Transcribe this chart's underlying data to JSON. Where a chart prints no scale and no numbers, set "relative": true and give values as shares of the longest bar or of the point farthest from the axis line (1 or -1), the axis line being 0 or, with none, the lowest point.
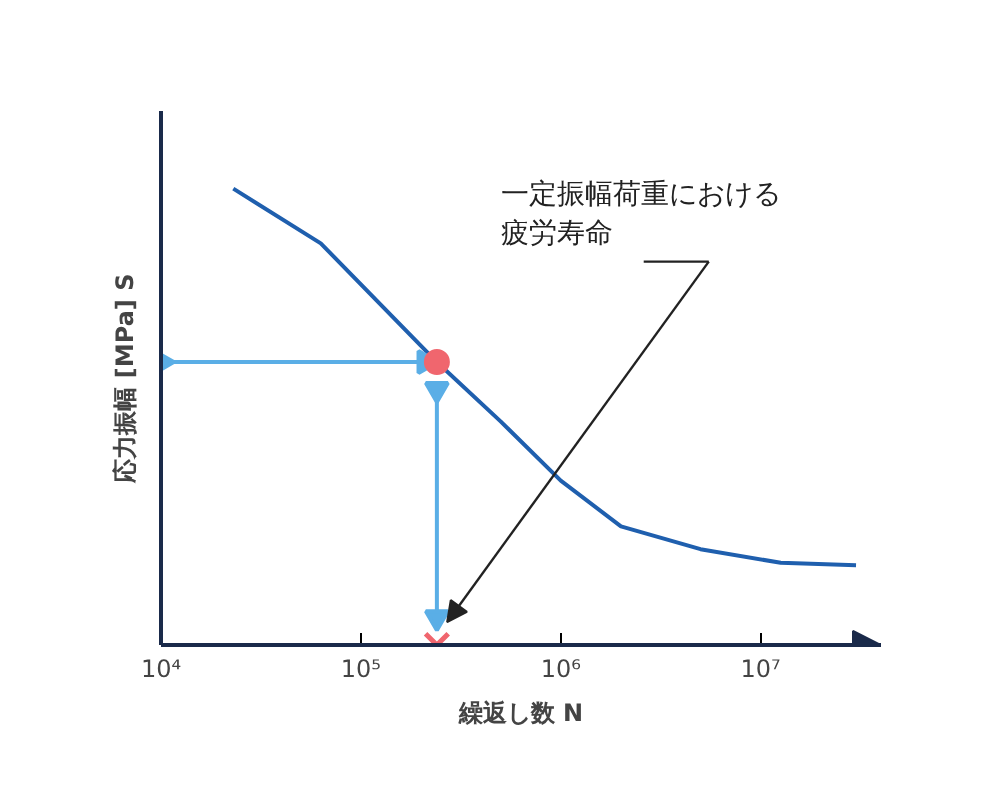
{
  "chart_data": {
    "type": "line",
    "xlabel": "繰返し数 N",
    "ylabel": "応力振幅 [MPa] S",
    "relative": true,
    "log": "x",
    "xlim": [
      10000,
      40000000
    ],
    "xticks": [
      {
        "value": 10000,
        "label": "10⁴"
      },
      {
        "value": 100000,
        "label": "10⁵"
      },
      {
        "value": 1000000,
        "label": "10⁶"
      },
      {
        "value": 10000000,
        "label": "10⁷"
      }
    ],
    "grid": false,
    "annotations": [
      "一定振幅荷重における疲労寿命"
    ],
    "series": [
      {
        "color": "#1f5fae",
        "marker": "none",
        "x": [
          23000,
          63000,
          240000,
          500000,
          1000000,
          2000000,
          5000000,
          12600000,
          30000000
        ],
        "values": [
          1.0,
          0.88,
          0.62,
          0.49,
          0.36,
          0.26,
          0.21,
          0.18,
          0.175
        ]
      },
      {
        "type": "scatter",
        "color": "#f0666e",
        "marker": "circle",
        "x": [
          240000
        ],
        "values": [
          0.62
        ]
      },
      {
        "type": "line",
        "color": "#5aaee6",
        "marker": "triangle",
        "x": [
          10000,
          209000
        ],
        "values": [
          0.62,
          0.62
        ]
      },
      {
        "type": "line",
        "color": "#5aaee6",
        "marker": "triangle",
        "x": [
          240000,
          240000
        ],
        "values": [
          0.56,
          0.06
        ]
      },
      {
        "type": "scatter",
        "color": "#f0666e",
        "marker": "cross",
        "x": [
          240000
        ],
        "values": [
          0
        ]
      }
    ]
  }
}
